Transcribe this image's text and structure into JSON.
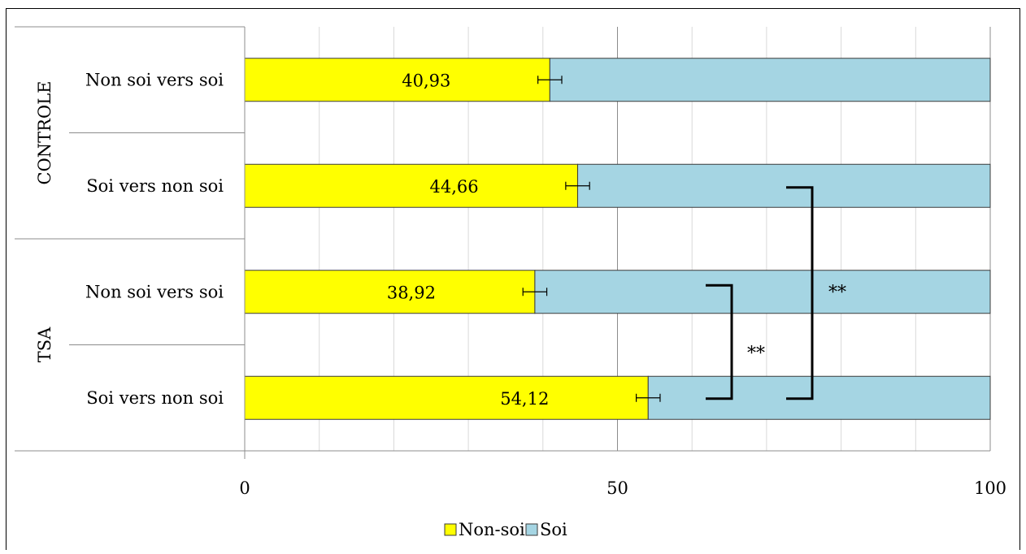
{
  "chart_data": {
    "type": "bar",
    "orientation": "horizontal",
    "stacked": true,
    "percent_stacked": true,
    "groups": [
      {
        "name": "CONTROLE",
        "categories": [
          "Non soi vers soi",
          "Soi vers non soi"
        ]
      },
      {
        "name": "TSA",
        "categories": [
          "Non soi vers soi",
          "Soi vers non soi"
        ]
      }
    ],
    "categories": [
      "Non soi vers soi",
      "Soi vers non soi",
      "Non soi vers soi",
      "Soi vers non soi"
    ],
    "series": [
      {
        "name": "Non-soi",
        "color": "#ffff00",
        "values": [
          40.93,
          44.66,
          38.92,
          54.12
        ],
        "errors": [
          1.6,
          1.6,
          1.6,
          1.6
        ]
      },
      {
        "name": "Soi",
        "color": "#a5d5e3",
        "values": [
          59.07,
          55.34,
          61.08,
          45.88
        ]
      }
    ],
    "data_labels": [
      "40,93",
      "44,66",
      "38,92",
      "54,12"
    ],
    "xlim": [
      0,
      100
    ],
    "x_ticks": [
      0,
      50,
      100
    ],
    "x_tick_labels": [
      "0",
      "50",
      "100"
    ],
    "grid": true,
    "legend": {
      "position": "bottom",
      "entries": [
        "Non-soi",
        "Soi"
      ]
    },
    "significance": [
      {
        "label": "**",
        "between": [
          2,
          3
        ]
      },
      {
        "label": "**",
        "between": [
          1,
          3
        ]
      }
    ],
    "title": "",
    "xlabel": "",
    "ylabel": ""
  }
}
